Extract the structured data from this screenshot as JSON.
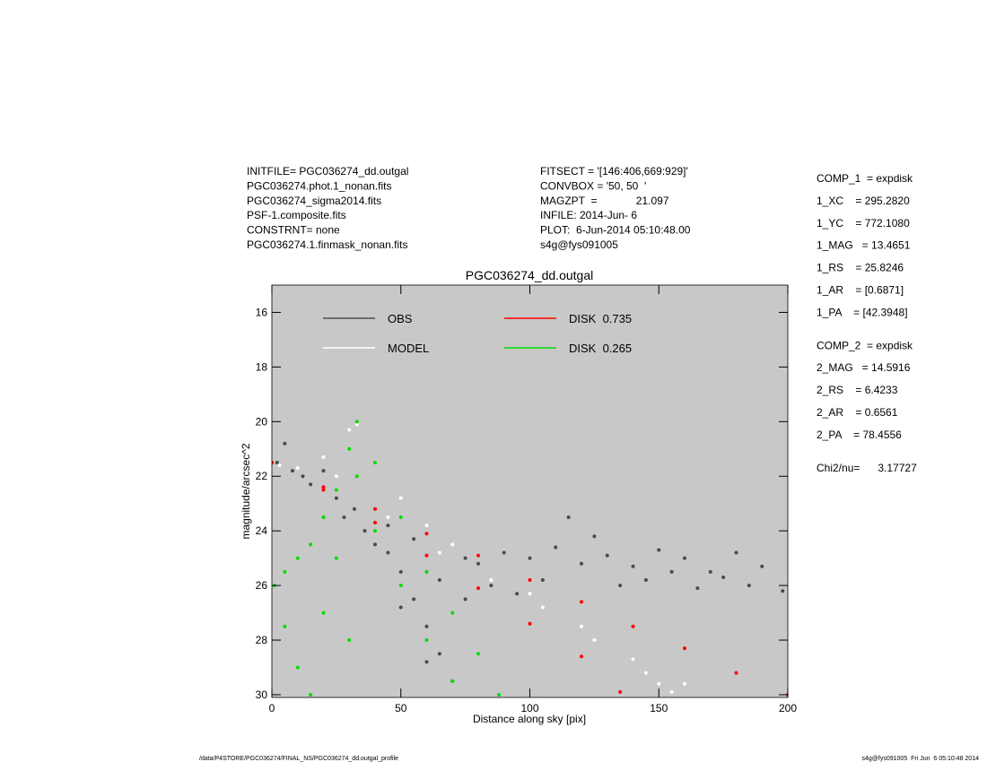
{
  "header_left": [
    "INITFILE= PGC036274_dd.outgal",
    "PGC036274.phot.1_nonan.fits",
    "PGC036274_sigma2014.fits",
    "PSF-1.composite.fits",
    "CONSTRNT= none",
    "PGC036274.1.finmask_nonan.fits"
  ],
  "header_middle": [
    "FITSECT = '[146:406,669:929]'",
    "CONVBOX = '50, 50  '",
    "MAGZPT  =             21.097",
    "INFILE: 2014-Jun- 6",
    "PLOT:  6-Jun-2014 05:10:48.00",
    "s4g@fys091005"
  ],
  "components": [
    [
      "COMP_1  = expdisk",
      "1_XC    = 295.2820",
      "1_YC    = 772.1080",
      "1_MAG   = 13.4651",
      "1_RS    = 25.8246",
      "1_AR    = [0.6871]",
      "1_PA    = [42.3948]"
    ],
    [
      "COMP_2  = expdisk",
      "2_MAG   = 14.5916",
      "2_RS    = 6.4233",
      "2_AR    = 0.6561",
      "2_PA    = 78.4556"
    ],
    [
      "Chi2/nu=      3.17727"
    ]
  ],
  "footer_left": "/data/P4STORE/PGC036274/FINAL_NS/PGC036274_dd.outgal_profile",
  "footer_right": "s4g@fys091005  Fri Jun  6 05:10:48 2014",
  "chart_data": {
    "type": "scatter",
    "title": "PGC036274_dd.outgal",
    "x_label": "Distance along sky [pix]",
    "y_label": "magnitude/arcsec^2",
    "xlim": [
      0,
      200
    ],
    "ylim": [
      30.1,
      15
    ],
    "xticks": [
      0,
      50,
      100,
      150,
      200
    ],
    "yticks": [
      16,
      18,
      20,
      22,
      24,
      26,
      28,
      30
    ],
    "background": "#c8c8c8",
    "legend": "upper left",
    "series": [
      {
        "name": "OBS",
        "color": "#4a4a4a",
        "x": [
          2,
          5,
          8,
          12,
          15,
          20,
          25,
          28,
          32,
          36,
          40,
          45,
          50,
          55,
          60,
          65,
          70,
          75,
          80,
          90,
          100,
          110,
          120,
          130,
          140,
          150,
          160,
          170,
          180,
          190,
          198,
          45,
          55,
          65,
          50,
          60,
          75,
          85,
          95,
          105,
          115,
          125,
          135,
          145,
          155,
          165,
          175,
          185
        ],
        "values": [
          21.5,
          20.8,
          21.8,
          22.0,
          22.3,
          21.8,
          22.8,
          23.5,
          23.2,
          24.0,
          24.5,
          24.8,
          25.5,
          26.5,
          27.5,
          28.5,
          29.5,
          25.0,
          25.2,
          24.8,
          25.0,
          24.6,
          25.2,
          24.9,
          25.3,
          24.7,
          25.0,
          25.5,
          24.8,
          25.3,
          26.2,
          23.8,
          24.3,
          25.8,
          26.8,
          28.8,
          26.5,
          26.0,
          26.3,
          25.8,
          23.5,
          24.2,
          26.0,
          25.8,
          25.5,
          26.1,
          25.7,
          26.0
        ]
      },
      {
        "name": "MODEL",
        "color": "#ffffff",
        "x": [
          3,
          10,
          20,
          30,
          33,
          40,
          50,
          60,
          70,
          80,
          100,
          120,
          140,
          150,
          160,
          25,
          45,
          65,
          85,
          105,
          125,
          145,
          155
        ],
        "values": [
          21.6,
          21.7,
          21.3,
          20.3,
          20.1,
          21.5,
          22.8,
          23.8,
          24.5,
          24.9,
          26.3,
          27.5,
          28.7,
          29.6,
          29.6,
          22.0,
          23.5,
          24.8,
          25.8,
          26.8,
          28.0,
          29.2,
          29.9
        ]
      },
      {
        "name": "DISK  0.735",
        "color": "#ff0000",
        "x": [
          0,
          20,
          40,
          60,
          80,
          100,
          120,
          140,
          160,
          180,
          200,
          20,
          40,
          60,
          80,
          100,
          120,
          135
        ],
        "values": [
          21.5,
          22.4,
          23.2,
          24.1,
          24.9,
          25.8,
          26.6,
          27.5,
          28.3,
          29.2,
          30.0,
          22.5,
          23.7,
          24.9,
          26.1,
          27.4,
          28.6,
          29.9
        ]
      },
      {
        "name": "DISK  0.265",
        "color": "#00dd00",
        "x": [
          33,
          30,
          25,
          20,
          15,
          10,
          5,
          1,
          5,
          10,
          15,
          40,
          50,
          60,
          70,
          80,
          88,
          33,
          25,
          40,
          50,
          60,
          70,
          20,
          30
        ],
        "values": [
          20.0,
          21.0,
          22.5,
          23.5,
          24.5,
          25.0,
          25.5,
          26.0,
          27.5,
          29.0,
          30.0,
          21.5,
          23.5,
          25.5,
          27.0,
          28.5,
          30.0,
          22.0,
          25.0,
          24.0,
          26.0,
          28.0,
          29.5,
          27.0,
          28.0
        ]
      }
    ]
  }
}
